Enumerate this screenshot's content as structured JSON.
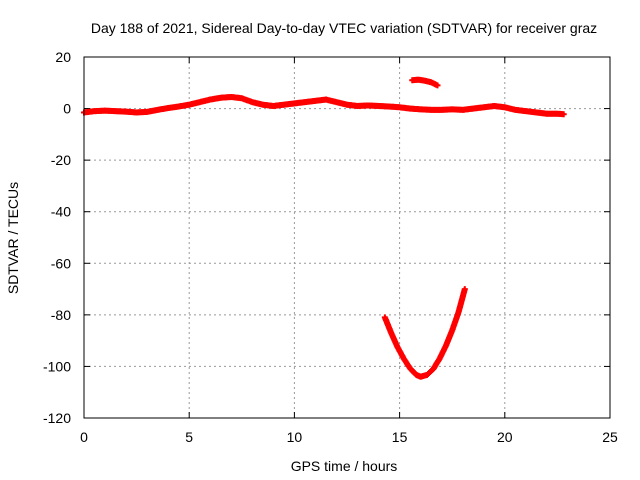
{
  "chart_data": {
    "type": "scatter",
    "title": "Day 188 of 2021, Sidereal Day-to-day VTEC variation (SDTVAR) for receiver graz",
    "xlabel": "GPS time / hours",
    "ylabel": "SDTVAR / TECUs",
    "xlim": [
      0,
      25
    ],
    "ylim": [
      -120,
      20
    ],
    "xticks": [
      0,
      5,
      10,
      15,
      20,
      25
    ],
    "yticks": [
      -120,
      -100,
      -80,
      -60,
      -40,
      -20,
      0,
      20
    ],
    "xtick_labels": [
      "0",
      "5",
      "10",
      "15",
      "20",
      "25"
    ],
    "ytick_labels": [
      "-120",
      "-100",
      "-80",
      "-60",
      "-40",
      "-20",
      "0",
      "20"
    ],
    "grid": true,
    "marker": "+",
    "color": "#ff0000",
    "series": [
      {
        "name": "main-track",
        "x": [
          0.0,
          0.5,
          1.0,
          1.5,
          2.0,
          2.5,
          3.0,
          3.5,
          4.0,
          4.5,
          5.0,
          5.5,
          6.0,
          6.5,
          7.0,
          7.5,
          8.0,
          8.5,
          9.0,
          9.5,
          10.0,
          10.5,
          11.0,
          11.5,
          12.0,
          12.5,
          13.0,
          13.5,
          14.0,
          14.5,
          15.0,
          15.5,
          16.0,
          16.5,
          17.0,
          17.5,
          18.0,
          18.5,
          19.0,
          19.5,
          20.0,
          20.5,
          21.0,
          21.5,
          22.0,
          22.5,
          22.8
        ],
        "y": [
          -1.5,
          -1.0,
          -0.8,
          -1.0,
          -1.2,
          -1.5,
          -1.3,
          -0.5,
          0.2,
          0.8,
          1.5,
          2.5,
          3.5,
          4.2,
          4.5,
          4.0,
          2.5,
          1.5,
          1.0,
          1.5,
          2.0,
          2.5,
          3.0,
          3.5,
          2.5,
          1.5,
          1.0,
          1.2,
          1.0,
          0.8,
          0.5,
          0.0,
          -0.3,
          -0.5,
          -0.5,
          -0.3,
          -0.5,
          0.0,
          0.5,
          1.0,
          0.5,
          -0.5,
          -1.0,
          -1.5,
          -2.0,
          -2.0,
          -2.2
        ]
      },
      {
        "name": "upper-arc",
        "x": [
          15.6,
          15.9,
          16.2,
          16.5,
          16.8
        ],
        "y": [
          11.0,
          11.2,
          10.8,
          10.2,
          9.0
        ]
      },
      {
        "name": "parabola",
        "x": [
          14.3,
          14.6,
          14.9,
          15.2,
          15.5,
          15.8,
          16.0,
          16.3,
          16.6,
          16.9,
          17.2,
          17.5,
          17.8,
          18.1
        ],
        "y": [
          -81,
          -87,
          -92.5,
          -97,
          -100.8,
          -103.3,
          -104,
          -103.3,
          -101,
          -97,
          -92,
          -86,
          -79,
          -70
        ]
      }
    ]
  }
}
